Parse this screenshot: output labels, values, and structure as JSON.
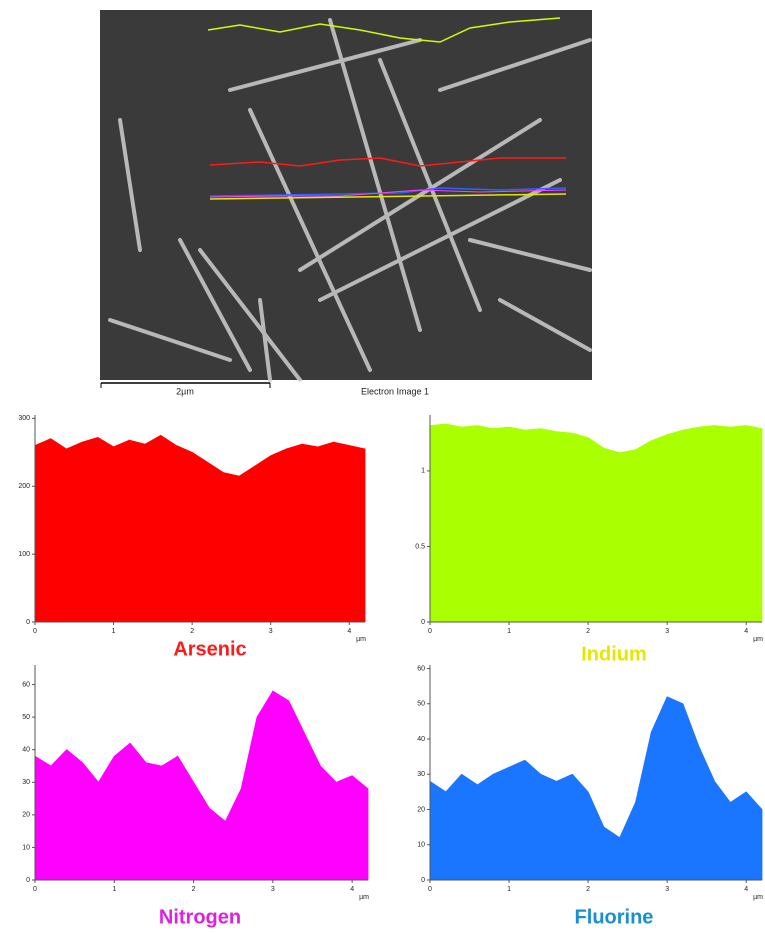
{
  "image": {
    "scale_label": "2µm",
    "caption": "Electron Image 1"
  },
  "chart_data": [
    {
      "type": "area",
      "title": "Arsenic",
      "title_color": "#ff1a1a",
      "color": "#ff0000",
      "xlabel": "µm",
      "x": [
        0,
        0.2,
        0.4,
        0.6,
        0.8,
        1.0,
        1.2,
        1.4,
        1.6,
        1.8,
        2.0,
        2.2,
        2.4,
        2.6,
        2.8,
        3.0,
        3.2,
        3.4,
        3.6,
        3.8,
        4.0,
        4.2
      ],
      "values": [
        260,
        270,
        255,
        265,
        272,
        258,
        268,
        262,
        275,
        260,
        250,
        235,
        220,
        215,
        230,
        245,
        255,
        262,
        258,
        265,
        260,
        255
      ],
      "xlim": [
        0,
        4.2
      ],
      "xticks": [
        0,
        1,
        2,
        3,
        4
      ],
      "ylim": [
        0,
        305
      ],
      "yticks": [
        0,
        100,
        200,
        300
      ]
    },
    {
      "type": "area",
      "title": "Indium",
      "title_color": "#e6e600",
      "color": "#aaff00",
      "xlabel": "µm",
      "x": [
        0,
        0.2,
        0.4,
        0.6,
        0.8,
        1.0,
        1.2,
        1.4,
        1.6,
        1.8,
        2.0,
        2.2,
        2.4,
        2.6,
        2.8,
        3.0,
        3.2,
        3.4,
        3.6,
        3.8,
        4.0,
        4.2
      ],
      "values": [
        1.3,
        1.31,
        1.29,
        1.3,
        1.28,
        1.29,
        1.27,
        1.28,
        1.26,
        1.25,
        1.22,
        1.15,
        1.12,
        1.14,
        1.2,
        1.24,
        1.27,
        1.29,
        1.3,
        1.29,
        1.3,
        1.28
      ],
      "xlim": [
        0,
        4.2
      ],
      "xticks": [
        0,
        1,
        2,
        3,
        4
      ],
      "ylim": [
        0,
        1.37
      ],
      "yticks": [
        0,
        0.5,
        1
      ]
    },
    {
      "type": "area",
      "title": "Nitrogen",
      "title_color": "#e020e0",
      "color": "#ff00ff",
      "xlabel": "µm",
      "x": [
        0,
        0.2,
        0.4,
        0.6,
        0.8,
        1.0,
        1.2,
        1.4,
        1.6,
        1.8,
        2.0,
        2.2,
        2.4,
        2.6,
        2.8,
        3.0,
        3.2,
        3.4,
        3.6,
        3.8,
        4.0,
        4.2
      ],
      "values": [
        38,
        35,
        40,
        36,
        30,
        38,
        42,
        36,
        35,
        38,
        30,
        22,
        18,
        28,
        50,
        58,
        55,
        45,
        35,
        30,
        32,
        28
      ],
      "xlim": [
        0,
        4.2
      ],
      "xticks": [
        0,
        1,
        2,
        3,
        4
      ],
      "ylim": [
        0,
        66
      ],
      "yticks": [
        0,
        10,
        20,
        30,
        40,
        50,
        60
      ]
    },
    {
      "type": "area",
      "title": "Fluorine",
      "title_color": "#1a8fd0",
      "color": "#1a75ff",
      "xlabel": "µm",
      "x": [
        0,
        0.2,
        0.4,
        0.6,
        0.8,
        1.0,
        1.2,
        1.4,
        1.6,
        1.8,
        2.0,
        2.2,
        2.4,
        2.6,
        2.8,
        3.0,
        3.2,
        3.4,
        3.6,
        3.8,
        4.0,
        4.2
      ],
      "values": [
        28,
        25,
        30,
        27,
        30,
        32,
        34,
        30,
        28,
        30,
        25,
        15,
        12,
        22,
        42,
        52,
        50,
        38,
        28,
        22,
        25,
        20
      ],
      "xlim": [
        0,
        4.2
      ],
      "xticks": [
        0,
        1,
        2,
        3,
        4
      ],
      "ylim": [
        0,
        61
      ],
      "yticks": [
        0,
        10,
        20,
        30,
        40,
        50,
        60
      ]
    }
  ]
}
